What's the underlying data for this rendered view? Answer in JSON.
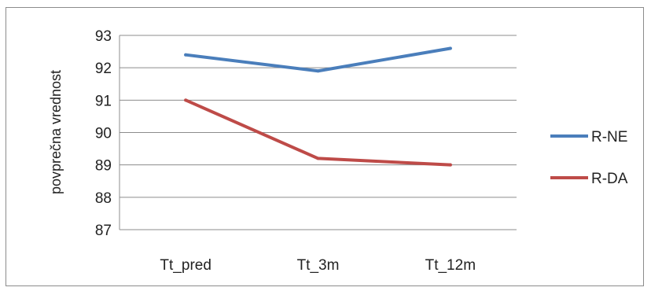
{
  "chart_data": {
    "type": "line",
    "title": "",
    "xlabel": "",
    "ylabel": "povprečna vrednost",
    "categories": [
      "Tt_pred",
      "Tt_3m",
      "Tt_12m"
    ],
    "ylim": [
      87,
      93
    ],
    "yticks": [
      "87",
      "88",
      "89",
      "90",
      "91",
      "92",
      "93"
    ],
    "grid": true,
    "legend": "right",
    "series": [
      {
        "name": "R-NE",
        "color": "#4a7ebb",
        "values": [
          92.4,
          91.9,
          92.6
        ]
      },
      {
        "name": "R-DA",
        "color": "#be4b48",
        "values": [
          91.0,
          89.2,
          89.0
        ]
      }
    ]
  }
}
